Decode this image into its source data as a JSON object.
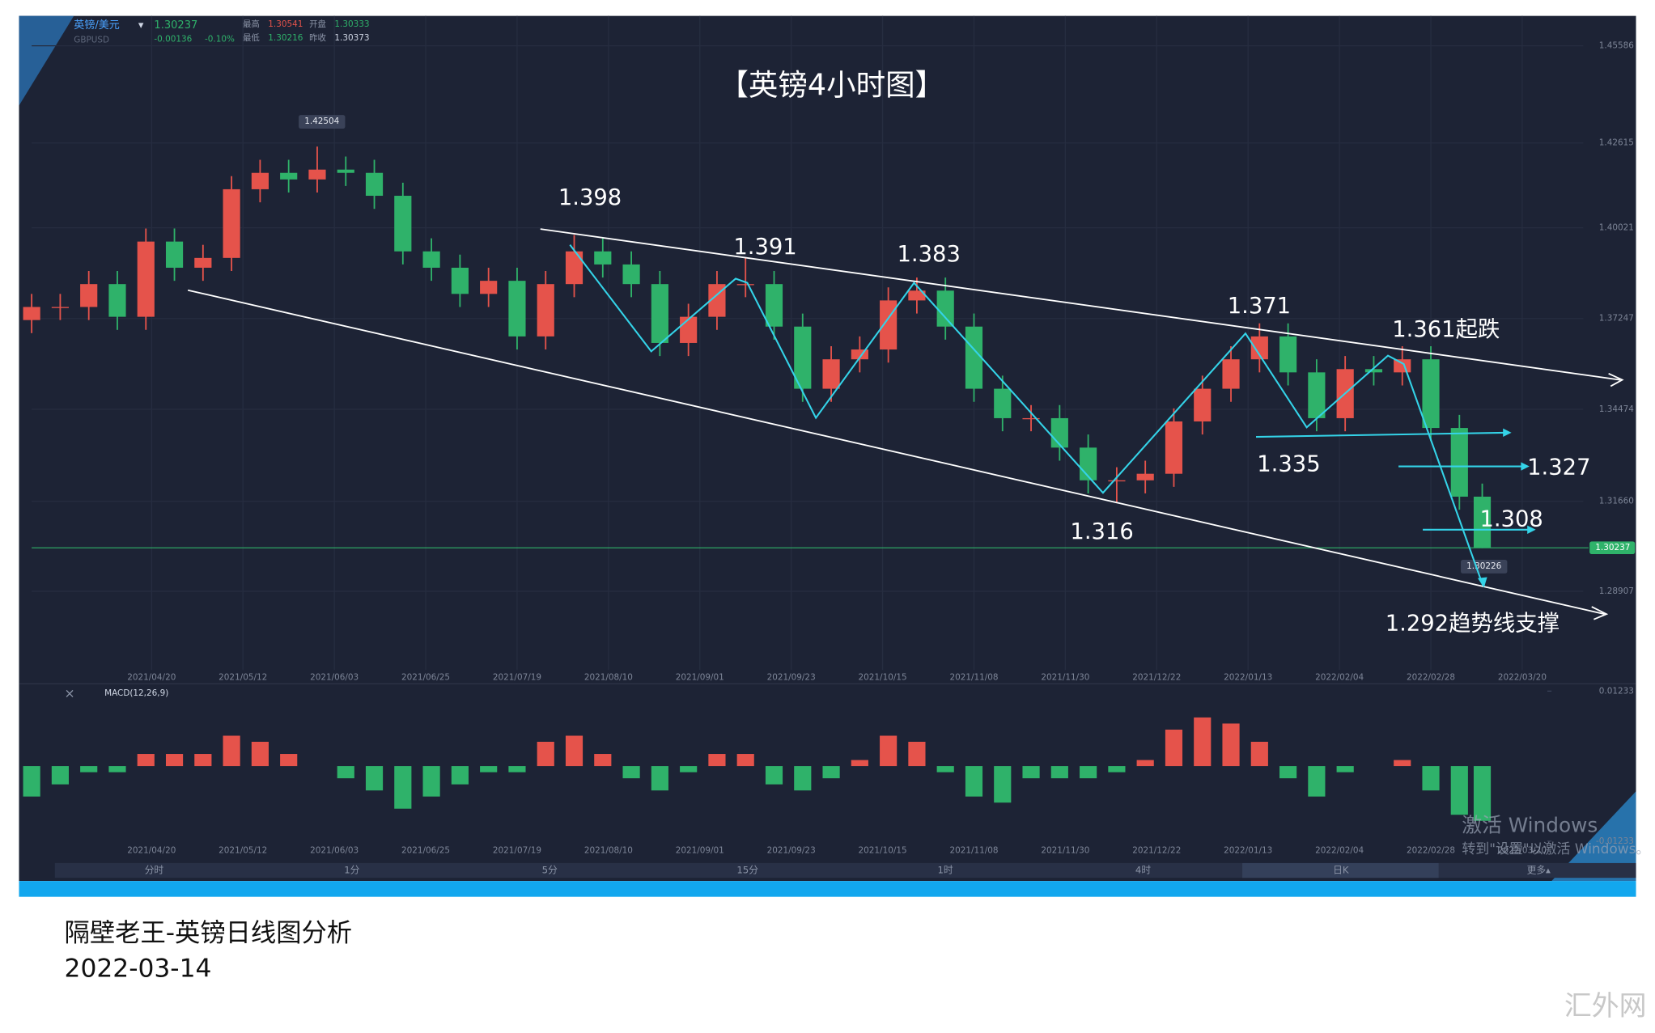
{
  "header": {
    "symbol": "英镑/美元",
    "code": "GBPUSD",
    "change": "-0.00136",
    "change_pct": "-0.10%",
    "high_label": "最高",
    "high": "1.30541",
    "open_label": "开盘",
    "open": "1.30333",
    "low_label": "最低",
    "low": "1.30216",
    "prev_label": "昨收",
    "prev": "1.30373"
  },
  "chart_data": [
    {
      "type": "candlestick",
      "title": "【英镑4小时图】",
      "x": [
        0,
        5,
        10,
        15,
        20,
        25,
        30,
        35,
        40,
        45,
        50,
        55,
        60,
        65,
        70,
        75,
        80,
        85,
        90,
        95,
        100,
        105,
        110,
        115,
        120,
        125,
        130,
        135,
        140,
        145,
        150,
        155,
        160,
        165,
        170,
        175,
        180,
        185,
        190,
        195,
        200,
        205,
        210,
        215,
        220,
        225,
        230,
        235,
        240,
        245,
        250,
        254
      ],
      "open": [
        1.372,
        1.376,
        1.376,
        1.383,
        1.373,
        1.396,
        1.388,
        1.391,
        1.412,
        1.417,
        1.415,
        1.418,
        1.417,
        1.41,
        1.393,
        1.388,
        1.38,
        1.384,
        1.367,
        1.383,
        1.393,
        1.389,
        1.383,
        1.365,
        1.373,
        1.383,
        1.383,
        1.37,
        1.351,
        1.36,
        1.363,
        1.378,
        1.381,
        1.37,
        1.351,
        1.342,
        1.342,
        1.333,
        1.323,
        1.323,
        1.325,
        1.341,
        1.351,
        1.36,
        1.367,
        1.356,
        1.342,
        1.357,
        1.356,
        1.36,
        1.339,
        1.318
      ],
      "high": [
        1.38,
        1.38,
        1.387,
        1.387,
        1.4,
        1.4,
        1.395,
        1.416,
        1.421,
        1.421,
        1.42504,
        1.422,
        1.421,
        1.414,
        1.397,
        1.392,
        1.388,
        1.388,
        1.387,
        1.398,
        1.397,
        1.393,
        1.387,
        1.377,
        1.387,
        1.391,
        1.387,
        1.374,
        1.364,
        1.367,
        1.382,
        1.385,
        1.385,
        1.374,
        1.355,
        1.346,
        1.346,
        1.337,
        1.327,
        1.329,
        1.345,
        1.355,
        1.364,
        1.371,
        1.371,
        1.36,
        1.361,
        1.361,
        1.364,
        1.364,
        1.343,
        1.322
      ],
      "low": [
        1.368,
        1.372,
        1.372,
        1.369,
        1.369,
        1.384,
        1.384,
        1.387,
        1.408,
        1.411,
        1.411,
        1.413,
        1.406,
        1.389,
        1.384,
        1.376,
        1.376,
        1.363,
        1.363,
        1.379,
        1.385,
        1.379,
        1.361,
        1.361,
        1.369,
        1.379,
        1.366,
        1.347,
        1.347,
        1.356,
        1.359,
        1.374,
        1.366,
        1.347,
        1.338,
        1.338,
        1.329,
        1.319,
        1.316,
        1.319,
        1.321,
        1.337,
        1.347,
        1.356,
        1.352,
        1.338,
        1.338,
        1.352,
        1.352,
        1.335,
        1.314,
        1.30226
      ],
      "close": [
        1.376,
        1.376,
        1.383,
        1.373,
        1.396,
        1.388,
        1.391,
        1.412,
        1.417,
        1.415,
        1.418,
        1.417,
        1.41,
        1.393,
        1.388,
        1.38,
        1.384,
        1.367,
        1.383,
        1.393,
        1.389,
        1.383,
        1.365,
        1.373,
        1.383,
        1.383,
        1.37,
        1.351,
        1.36,
        1.363,
        1.378,
        1.381,
        1.37,
        1.351,
        1.342,
        1.342,
        1.333,
        1.323,
        1.323,
        1.325,
        1.341,
        1.351,
        1.36,
        1.367,
        1.356,
        1.342,
        1.357,
        1.356,
        1.36,
        1.339,
        1.318,
        1.30237
      ],
      "up_color": "#e5534b",
      "down_color": "#2fb26a",
      "last_price": 1.30237,
      "max_flag": 1.42504,
      "min_flag": 1.30226,
      "xlim": [
        0,
        280
      ],
      "ylim": [
        1.265,
        1.465
      ],
      "xticks": [
        {
          "value": 21,
          "label": "2021/04/20"
        },
        {
          "value": 37,
          "label": "2021/05/12"
        },
        {
          "value": 53,
          "label": "2021/06/03"
        },
        {
          "value": 69,
          "label": "2021/06/25"
        },
        {
          "value": 85,
          "label": "2021/07/19"
        },
        {
          "value": 101,
          "label": "2021/08/10"
        },
        {
          "value": 117,
          "label": "2021/09/01"
        },
        {
          "value": 133,
          "label": "2021/09/23"
        },
        {
          "value": 149,
          "label": "2021/10/15"
        },
        {
          "value": 165,
          "label": "2021/11/08"
        },
        {
          "value": 181,
          "label": "2021/11/30"
        },
        {
          "value": 197,
          "label": "2021/12/22"
        },
        {
          "value": 213,
          "label": "2022/01/13"
        },
        {
          "value": 229,
          "label": "2022/02/04"
        },
        {
          "value": 245,
          "label": "2022/02/28"
        },
        {
          "value": 261,
          "label": "2022/03/20"
        }
      ],
      "yticks": [
        1.45586,
        1.42615,
        1.40021,
        1.37247,
        1.34474,
        {
          "value": 1.3166,
          "label": "1.31660"
        },
        1.28907
      ],
      "grid": true,
      "annotations": [
        "1.398",
        "1.391",
        "1.383",
        "1.371",
        "1.361起跌",
        "1.335",
        "1.327",
        "1.308",
        "1.316",
        "1.292趋势线支撑"
      ]
    },
    {
      "type": "bar",
      "title": "MACD(12,26,9)",
      "x": [
        0,
        5,
        10,
        15,
        20,
        25,
        30,
        35,
        40,
        45,
        50,
        55,
        60,
        65,
        70,
        75,
        80,
        85,
        90,
        95,
        100,
        105,
        110,
        115,
        120,
        125,
        130,
        135,
        140,
        145,
        150,
        155,
        160,
        165,
        170,
        175,
        180,
        185,
        190,
        195,
        200,
        205,
        210,
        215,
        220,
        225,
        230,
        235,
        240,
        245,
        250,
        254
      ],
      "values": [
        -0.005,
        -0.003,
        -0.001,
        -0.001,
        0.002,
        0.002,
        0.002,
        0.005,
        0.004,
        0.002,
        0,
        -0.002,
        -0.004,
        -0.007,
        -0.005,
        -0.003,
        -0.001,
        -0.001,
        0.004,
        0.005,
        0.002,
        -0.002,
        -0.004,
        -0.001,
        0.002,
        0.002,
        -0.003,
        -0.004,
        -0.002,
        0.001,
        0.005,
        0.004,
        -0.001,
        -0.005,
        -0.006,
        -0.002,
        -0.002,
        -0.002,
        -0.001,
        0.001,
        0.006,
        0.008,
        0.007,
        0.004,
        -0.002,
        -0.005,
        -0.001,
        0,
        0.001,
        -0.004,
        -0.008,
        -0.009
      ],
      "up_color": "#e5534b",
      "down_color": "#2fb26a",
      "xlim": [
        0,
        280
      ],
      "ylim": [
        -0.0149,
        0.0132
      ],
      "yticks": [
        0.01233,
        -0.01233
      ]
    }
  ],
  "toolbar": [
    "分时",
    "1分",
    "5分",
    "15分",
    "1时",
    "4时",
    "日K",
    "更多▴"
  ],
  "watermark": [
    "激活 Windows",
    "转到\"设置\"以激活 Windows。"
  ],
  "footer": {
    "title": "隔壁老王-英镑日线图分析",
    "date": "2022-03-14",
    "site": "汇外网"
  }
}
